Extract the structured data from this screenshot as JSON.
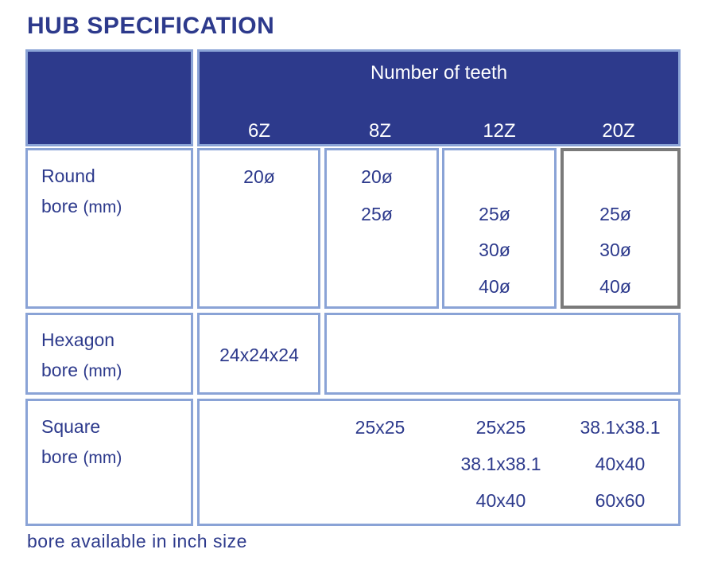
{
  "title": "HUB SPECIFICATION",
  "header": {
    "group_label": "Number of teeth",
    "columns": [
      "6Z",
      "8Z",
      "12Z",
      "20Z"
    ]
  },
  "rows": {
    "round": {
      "label_line1": "Round",
      "label_line2": "bore",
      "unit": "(mm)",
      "values": {
        "6Z": [
          "20ø"
        ],
        "8Z": [
          "20ø",
          "25ø"
        ],
        "12Z": [
          "25ø",
          "30ø",
          "40ø"
        ],
        "20Z": [
          "25ø",
          "30ø",
          "40ø"
        ]
      }
    },
    "hexagon": {
      "label_line1": "Hexagon",
      "label_line2": "bore",
      "unit": "(mm)",
      "values": {
        "6Z": [
          "24x24x24"
        ]
      }
    },
    "square": {
      "label_line1": "Square",
      "label_line2": "bore",
      "unit": "(mm)",
      "values": {
        "8Z": [
          "25x25"
        ],
        "12Z": [
          "25x25",
          "38.1x38.1",
          "40x40"
        ],
        "20Z": [
          "38.1x38.1",
          "40x40",
          "60x60"
        ]
      }
    }
  },
  "footer": "bore available in inch size",
  "colors": {
    "navy": "#2d3a8c",
    "border": "#8aa3d6",
    "highlight_border": "#7a7a7a"
  }
}
